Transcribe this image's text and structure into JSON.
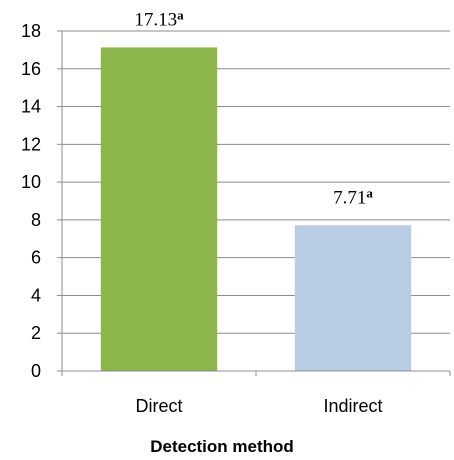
{
  "chart_data": {
    "type": "bar",
    "categories": [
      "Direct",
      "Indirect"
    ],
    "values": [
      17.13,
      7.71
    ],
    "data_labels": [
      {
        "value": "17.13",
        "superscript": "a"
      },
      {
        "value": "7.71",
        "superscript": "a"
      }
    ],
    "bar_colors": [
      "#8cb54a",
      "#b8cce4"
    ],
    "title": "",
    "xlabel": "Detection method",
    "ylabel": "",
    "ylim": [
      0,
      18
    ],
    "yticks": [
      0,
      2,
      4,
      6,
      8,
      10,
      12,
      14,
      16,
      18
    ],
    "grid": true,
    "legend": "none"
  }
}
